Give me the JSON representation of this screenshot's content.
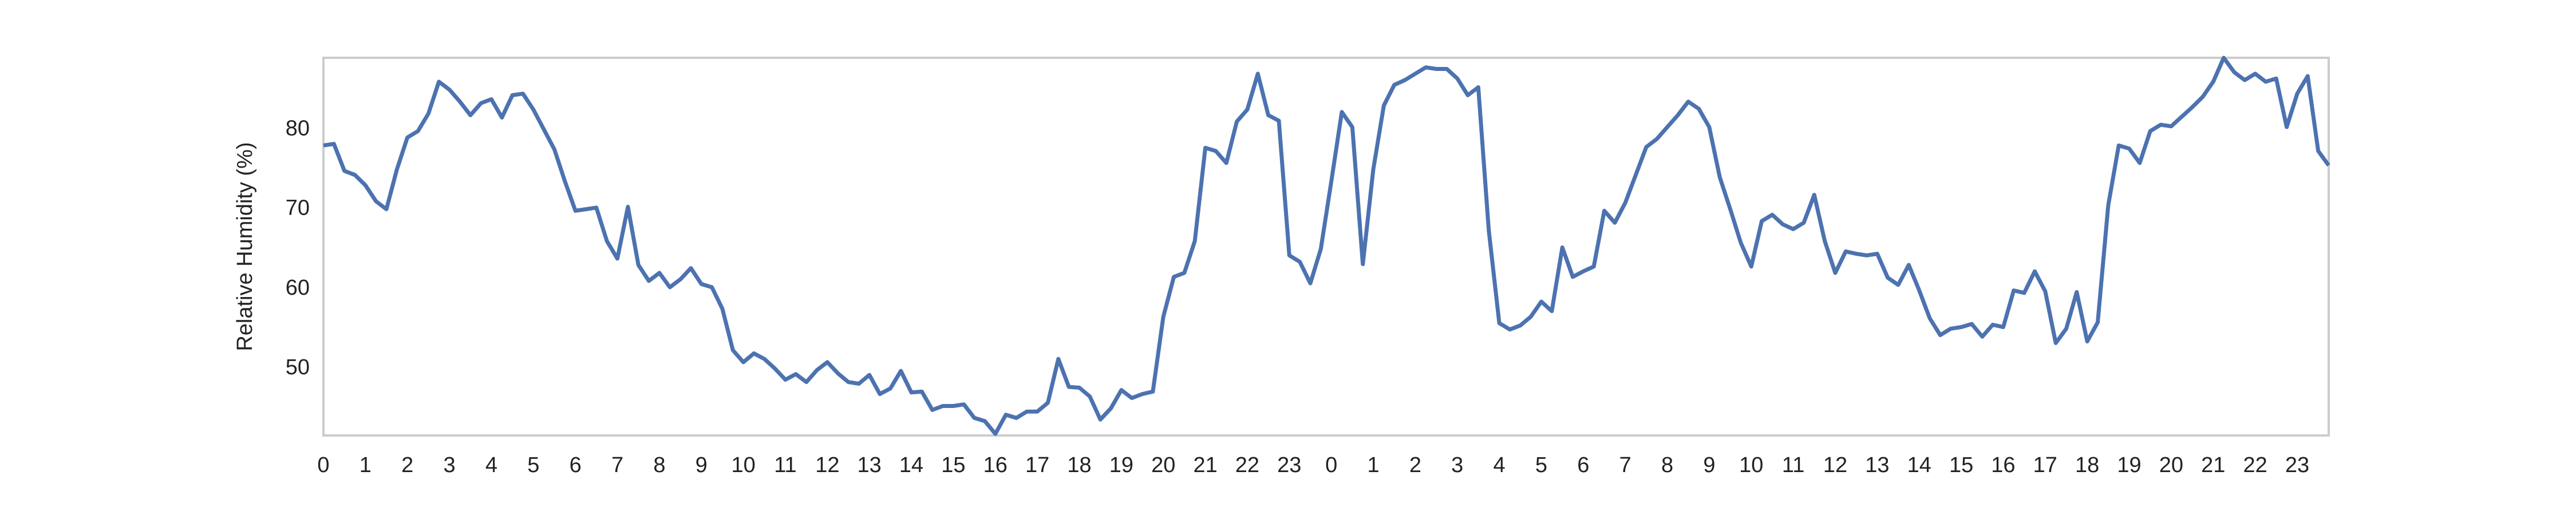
{
  "chart_data": {
    "type": "line",
    "y_label": "Relative Humidity (%)",
    "xlim": [
      0,
      47.75
    ],
    "ylim": [
      41.6,
      89
    ],
    "yticks": [
      50,
      60,
      70,
      80
    ],
    "xticks": [
      0,
      1,
      2,
      3,
      4,
      5,
      6,
      7,
      8,
      9,
      10,
      11,
      12,
      13,
      14,
      15,
      16,
      17,
      18,
      19,
      20,
      21,
      22,
      23,
      {
        "value": 24,
        "label": "0"
      },
      {
        "value": 25,
        "label": "1"
      },
      {
        "value": 26,
        "label": "2"
      },
      {
        "value": 27,
        "label": "3"
      },
      {
        "value": 28,
        "label": "4"
      },
      {
        "value": 29,
        "label": "5"
      },
      {
        "value": 30,
        "label": "6"
      },
      {
        "value": 31,
        "label": "7"
      },
      {
        "value": 32,
        "label": "8"
      },
      {
        "value": 33,
        "label": "9"
      },
      {
        "value": 34,
        "label": "10"
      },
      {
        "value": 35,
        "label": "11"
      },
      {
        "value": 36,
        "label": "12"
      },
      {
        "value": 37,
        "label": "13"
      },
      {
        "value": 38,
        "label": "14"
      },
      {
        "value": 39,
        "label": "15"
      },
      {
        "value": 40,
        "label": "16"
      },
      {
        "value": 41,
        "label": "17"
      },
      {
        "value": 42,
        "label": "18"
      },
      {
        "value": 43,
        "label": "19"
      },
      {
        "value": 44,
        "label": "20"
      },
      {
        "value": 45,
        "label": "21"
      },
      {
        "value": 46,
        "label": "22"
      },
      {
        "value": 47,
        "label": "23"
      }
    ],
    "grid": false,
    "x": [
      0,
      0.25,
      0.5,
      0.75,
      1,
      1.25,
      1.5,
      1.75,
      2,
      2.25,
      2.5,
      2.75,
      3,
      3.25,
      3.5,
      3.75,
      4,
      4.25,
      4.5,
      4.75,
      5,
      5.25,
      5.5,
      5.75,
      6,
      6.25,
      6.5,
      6.75,
      7,
      7.25,
      7.5,
      7.75,
      8,
      8.25,
      8.5,
      8.75,
      9,
      9.25,
      9.5,
      9.75,
      10,
      10.25,
      10.5,
      10.75,
      11,
      11.25,
      11.5,
      11.75,
      12,
      12.25,
      12.5,
      12.75,
      13,
      13.25,
      13.5,
      13.75,
      14,
      14.25,
      14.5,
      14.75,
      15,
      15.25,
      15.5,
      15.75,
      16,
      16.25,
      16.5,
      16.75,
      17,
      17.25,
      17.5,
      17.75,
      18,
      18.25,
      18.5,
      18.75,
      19,
      19.25,
      19.5,
      19.75,
      20,
      20.25,
      20.5,
      20.75,
      21,
      21.25,
      21.5,
      21.75,
      22,
      22.25,
      22.5,
      22.75,
      23,
      23.25,
      23.5,
      23.75,
      24,
      24.25,
      24.5,
      24.75,
      25,
      25.25,
      25.5,
      25.75,
      26,
      26.25,
      26.5,
      26.75,
      27,
      27.25,
      27.5,
      27.75,
      28,
      28.25,
      28.5,
      28.75,
      29,
      29.25,
      29.5,
      29.75,
      30,
      30.25,
      30.5,
      30.75,
      31,
      31.25,
      31.5,
      31.75,
      32,
      32.25,
      32.5,
      32.75,
      33,
      33.25,
      33.5,
      33.75,
      34,
      34.25,
      34.5,
      34.75,
      35,
      35.25,
      35.5,
      35.75,
      36,
      36.25,
      36.5,
      36.75,
      37,
      37.25,
      37.5,
      37.75,
      38,
      38.25,
      38.5,
      38.75,
      39,
      39.25,
      39.5,
      39.75,
      40,
      40.25,
      40.5,
      40.75,
      41,
      41.25,
      41.5,
      41.75,
      42,
      42.25,
      42.5,
      42.75,
      43,
      43.25,
      43.5,
      43.75,
      44,
      44.25,
      44.5,
      44.75,
      45,
      45.25,
      45.5,
      45.75,
      46,
      46.25,
      46.5,
      46.75,
      47,
      47.25,
      47.5,
      47.75
    ],
    "series": [
      {
        "color": "#4c72b0",
        "values": [
          78,
          78.2,
          74.8,
          74.3,
          73,
          71,
          70,
          75,
          79,
          79.8,
          82,
          86,
          85,
          83.5,
          81.8,
          83.3,
          83.8,
          81.5,
          84.3,
          84.5,
          82.5,
          80,
          77.5,
          73.5,
          69.8,
          70,
          70.2,
          66,
          63.8,
          70.3,
          63,
          61,
          62,
          60.2,
          61.2,
          62.6,
          60.6,
          60.2,
          57.5,
          52.3,
          50.8,
          51.9,
          51.2,
          50,
          48.6,
          49.3,
          48.3,
          49.8,
          50.8,
          49.4,
          48.3,
          48.1,
          49.2,
          46.8,
          47.5,
          49.7,
          47,
          47.1,
          44.8,
          45.3,
          45.3,
          45.5,
          43.8,
          43.4,
          41.8,
          44.2,
          43.8,
          44.6,
          44.6,
          45.7,
          51.2,
          47.7,
          47.6,
          46.5,
          43.6,
          45,
          47.3,
          46.3,
          46.8,
          47.1,
          56.5,
          61.5,
          62,
          66,
          77.7,
          77.3,
          75.8,
          81,
          82.5,
          87,
          81.8,
          81.1,
          64.2,
          63.4,
          60.7,
          65,
          73.5,
          82.2,
          80.3,
          63.1,
          75,
          83,
          85.6,
          86.2,
          87,
          87.8,
          87.6,
          87.6,
          86.4,
          84.3,
          85.3,
          67.3,
          55.7,
          54.9,
          55.4,
          56.5,
          58.4,
          57.2,
          65.2,
          61.5,
          62.2,
          62.8,
          69.8,
          68.3,
          70.8,
          74.3,
          77.8,
          78.8,
          80.3,
          81.8,
          83.5,
          82.6,
          80.3,
          74,
          70,
          65.8,
          62.8,
          68.5,
          69.3,
          68.1,
          67.5,
          68.3,
          71.8,
          66,
          62,
          64.7,
          64.4,
          64.2,
          64.4,
          61.4,
          60.5,
          63,
          59.8,
          56.3,
          54.2,
          55,
          55.2,
          55.6,
          54,
          55.5,
          55.2,
          59.8,
          59.5,
          62.2,
          59.7,
          53.2,
          55,
          59.6,
          53.4,
          55.8,
          70.5,
          78,
          77.6,
          75.8,
          79.8,
          80.6,
          80.4,
          81.6,
          82.8,
          84.1,
          86,
          89,
          87.2,
          86.2,
          87,
          86,
          86.4,
          80.3,
          84.5,
          86.7,
          77.3,
          75.5
        ]
      }
    ]
  }
}
